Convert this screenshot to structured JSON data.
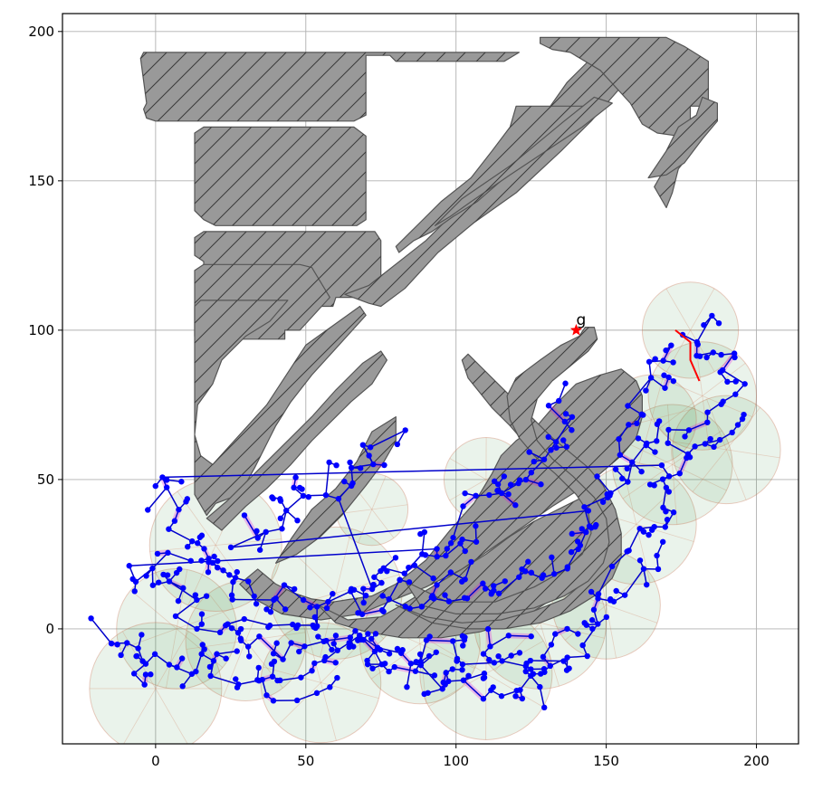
{
  "chart_data": {
    "type": "scatter",
    "title": "",
    "xlabel": "",
    "ylabel": "",
    "xlim": [
      -31,
      214
    ],
    "ylim": [
      -38.5,
      206
    ],
    "xticks": [
      0,
      50,
      100,
      150,
      200
    ],
    "yticks": [
      0,
      50,
      100,
      150,
      200
    ],
    "grid": true,
    "goal": {
      "x": 140,
      "y": 100,
      "label": "g",
      "color": "#ff0000"
    },
    "colors": {
      "obstacle_fill": "#999999",
      "obstacle_edge": "#555555",
      "tree_nodes": "#0000ff",
      "tree_edges": "#0000cc",
      "sampling_regions": "#2e8b3a",
      "local_paths": "#e000e0",
      "final_path": "#ff0000"
    },
    "obstacles": [
      [
        [
          -5,
          191
        ],
        [
          -4,
          193
        ],
        [
          121,
          193
        ],
        [
          116,
          190
        ],
        [
          80,
          190
        ],
        [
          78,
          192
        ],
        [
          70,
          192
        ],
        [
          70,
          172
        ],
        [
          66,
          170
        ],
        [
          0,
          170
        ],
        [
          -3,
          171
        ],
        [
          -4,
          174
        ],
        [
          -3,
          176
        ]
      ],
      [
        [
          13,
          166
        ],
        [
          16,
          168
        ],
        [
          66,
          168
        ],
        [
          70,
          165
        ],
        [
          70,
          137
        ],
        [
          67,
          135
        ],
        [
          20,
          135
        ],
        [
          16,
          137
        ],
        [
          13,
          140
        ]
      ],
      [
        [
          13,
          131
        ],
        [
          16,
          133
        ],
        [
          73,
          133
        ],
        [
          75,
          130
        ],
        [
          75,
          115
        ],
        [
          70,
          111
        ],
        [
          60,
          111
        ],
        [
          59,
          108
        ],
        [
          52,
          108
        ],
        [
          44,
          113
        ],
        [
          44,
          110
        ],
        [
          20,
          110
        ],
        [
          16,
          113
        ],
        [
          16,
          123
        ],
        [
          13,
          125
        ],
        [
          13,
          126
        ]
      ],
      [
        [
          13,
          120
        ],
        [
          16,
          122
        ],
        [
          48,
          122
        ],
        [
          52,
          121
        ],
        [
          58,
          111
        ],
        [
          48,
          100
        ],
        [
          43,
          100
        ],
        [
          43,
          97
        ],
        [
          16,
          97
        ],
        [
          13,
          98
        ]
      ],
      [
        [
          13,
          108
        ],
        [
          15,
          110
        ],
        [
          19,
          110
        ],
        [
          44,
          110
        ],
        [
          38,
          103
        ],
        [
          30,
          98
        ],
        [
          22,
          90
        ],
        [
          19,
          82
        ],
        [
          14,
          75
        ],
        [
          13,
          65
        ],
        [
          15,
          58
        ],
        [
          19,
          55
        ],
        [
          37,
          75
        ],
        [
          50,
          95
        ],
        [
          68,
          108
        ],
        [
          70,
          105
        ],
        [
          52,
          85
        ],
        [
          45,
          76
        ],
        [
          40,
          68
        ],
        [
          33,
          54
        ],
        [
          28,
          45
        ],
        [
          20,
          42
        ],
        [
          17,
          38
        ],
        [
          13,
          45
        ],
        [
          13,
          55
        ]
      ],
      [
        [
          63,
          112
        ],
        [
          71,
          115
        ],
        [
          90,
          130
        ],
        [
          105,
          145
        ],
        [
          120,
          160
        ],
        [
          130,
          173
        ],
        [
          137,
          183
        ],
        [
          145,
          191
        ],
        [
          150,
          197
        ],
        [
          160,
          197
        ],
        [
          165,
          193
        ],
        [
          145,
          170
        ],
        [
          135,
          160
        ],
        [
          120,
          146
        ],
        [
          106,
          136
        ],
        [
          94,
          126
        ],
        [
          83,
          114
        ],
        [
          75,
          108
        ],
        [
          71,
          109
        ]
      ],
      [
        [
          128,
          198
        ],
        [
          170,
          198
        ],
        [
          176,
          195
        ],
        [
          184,
          190
        ],
        [
          184,
          175
        ],
        [
          178,
          175
        ],
        [
          178,
          168
        ],
        [
          180,
          164
        ],
        [
          178,
          159
        ],
        [
          174,
          154
        ],
        [
          172,
          146
        ],
        [
          170,
          141
        ],
        [
          166,
          148
        ],
        [
          170,
          155
        ],
        [
          173,
          160
        ],
        [
          174,
          165
        ],
        [
          167,
          166
        ],
        [
          162,
          169
        ],
        [
          158,
          176
        ],
        [
          148,
          187
        ],
        [
          138,
          193
        ],
        [
          132,
          194
        ],
        [
          128,
          196
        ]
      ],
      [
        [
          120,
          175
        ],
        [
          145,
          175
        ],
        [
          130,
          163
        ],
        [
          115,
          150
        ],
        [
          107,
          143
        ],
        [
          99,
          138
        ],
        [
          92,
          133
        ],
        [
          86,
          130
        ],
        [
          81,
          126
        ],
        [
          80,
          128
        ],
        [
          88,
          136
        ],
        [
          95,
          143
        ],
        [
          105,
          151
        ],
        [
          112,
          160
        ],
        [
          118,
          168
        ]
      ],
      [
        [
          93,
          135
        ],
        [
          102,
          144
        ],
        [
          118,
          155
        ],
        [
          136,
          170
        ],
        [
          146,
          178
        ],
        [
          152,
          176
        ],
        [
          142,
          168
        ],
        [
          130,
          160
        ],
        [
          118,
          152
        ],
        [
          105,
          143
        ],
        [
          98,
          138
        ]
      ],
      [
        [
          164,
          151
        ],
        [
          170,
          160
        ],
        [
          174,
          168
        ],
        [
          180,
          172
        ],
        [
          182,
          178
        ],
        [
          187,
          176
        ],
        [
          187,
          170
        ],
        [
          182,
          164
        ],
        [
          176,
          156
        ],
        [
          170,
          152
        ]
      ],
      [
        [
          17,
          37
        ],
        [
          22,
          33
        ],
        [
          30,
          41
        ],
        [
          37,
          47
        ],
        [
          45,
          55
        ],
        [
          52,
          63
        ],
        [
          60,
          71
        ],
        [
          65,
          76
        ],
        [
          72,
          82
        ],
        [
          77,
          90
        ],
        [
          75,
          93
        ],
        [
          69,
          89
        ],
        [
          60,
          80
        ],
        [
          52,
          71
        ],
        [
          45,
          64
        ],
        [
          37,
          56
        ],
        [
          30,
          49
        ],
        [
          24,
          43
        ]
      ],
      [
        [
          40,
          22
        ],
        [
          45,
          30
        ],
        [
          52,
          40
        ],
        [
          60,
          47
        ],
        [
          67,
          56
        ],
        [
          72,
          66
        ],
        [
          80,
          71
        ],
        [
          80,
          63
        ],
        [
          76,
          56
        ],
        [
          70,
          48
        ],
        [
          62,
          38
        ],
        [
          55,
          31
        ],
        [
          47,
          25
        ]
      ],
      [
        [
          34,
          20
        ],
        [
          40,
          15
        ],
        [
          46,
          12
        ],
        [
          52,
          10
        ],
        [
          59,
          9
        ],
        [
          72,
          11
        ],
        [
          80,
          15
        ],
        [
          90,
          23
        ],
        [
          98,
          33
        ],
        [
          106,
          42
        ],
        [
          112,
          52
        ],
        [
          115,
          58
        ],
        [
          120,
          63
        ],
        [
          127,
          68
        ],
        [
          133,
          75
        ],
        [
          140,
          82
        ],
        [
          148,
          85
        ],
        [
          155,
          87
        ],
        [
          160,
          83
        ],
        [
          162,
          78
        ],
        [
          162,
          71
        ],
        [
          160,
          64
        ],
        [
          155,
          58
        ],
        [
          148,
          52
        ],
        [
          140,
          46
        ],
        [
          132,
          41
        ],
        [
          122,
          34
        ],
        [
          112,
          27
        ],
        [
          102,
          20
        ],
        [
          90,
          14
        ],
        [
          80,
          10
        ],
        [
          68,
          5
        ],
        [
          55,
          3
        ],
        [
          42,
          5
        ],
        [
          33,
          10
        ],
        [
          28,
          15
        ]
      ],
      [
        [
          54,
          8
        ],
        [
          64,
          3
        ],
        [
          75,
          4
        ],
        [
          82,
          8
        ],
        [
          92,
          14
        ],
        [
          102,
          20
        ],
        [
          110,
          25
        ],
        [
          118,
          31
        ],
        [
          126,
          36
        ],
        [
          134,
          40
        ],
        [
          142,
          44
        ],
        [
          148,
          46
        ],
        [
          152,
          42
        ],
        [
          154,
          36
        ],
        [
          152,
          30
        ],
        [
          148,
          24
        ],
        [
          142,
          18
        ],
        [
          135,
          12
        ],
        [
          126,
          6
        ],
        [
          118,
          2
        ],
        [
          108,
          -1
        ],
        [
          95,
          -3
        ],
        [
          82,
          -3
        ],
        [
          70,
          -1
        ],
        [
          60,
          2
        ]
      ],
      [
        [
          80,
          8
        ],
        [
          90,
          4
        ],
        [
          102,
          2
        ],
        [
          115,
          3
        ],
        [
          126,
          6
        ],
        [
          136,
          10
        ],
        [
          143,
          16
        ],
        [
          148,
          22
        ],
        [
          150,
          28
        ],
        [
          149,
          35
        ],
        [
          145,
          42
        ],
        [
          140,
          46
        ],
        [
          136,
          50
        ],
        [
          130,
          55
        ],
        [
          124,
          61
        ],
        [
          118,
          68
        ],
        [
          112,
          74
        ],
        [
          108,
          79
        ],
        [
          104,
          84
        ],
        [
          102,
          90
        ],
        [
          104,
          92
        ],
        [
          108,
          88
        ],
        [
          114,
          82
        ],
        [
          120,
          76
        ],
        [
          126,
          70
        ],
        [
          132,
          64
        ],
        [
          138,
          59
        ],
        [
          144,
          54
        ],
        [
          149,
          48
        ],
        [
          153,
          40
        ],
        [
          155,
          32
        ],
        [
          155,
          24
        ],
        [
          152,
          17
        ],
        [
          146,
          11
        ],
        [
          138,
          6
        ],
        [
          128,
          2
        ],
        [
          116,
          0
        ],
        [
          104,
          0
        ],
        [
          92,
          2
        ]
      ],
      [
        [
          83,
          16
        ],
        [
          97,
          9
        ],
        [
          113,
          9
        ],
        [
          126,
          14
        ],
        [
          135,
          19
        ],
        [
          142,
          25
        ],
        [
          145,
          32
        ],
        [
          144,
          39
        ],
        [
          140,
          45
        ],
        [
          133,
          52
        ],
        [
          126,
          58
        ],
        [
          121,
          64
        ],
        [
          118,
          70
        ],
        [
          117,
          78
        ],
        [
          120,
          84
        ],
        [
          128,
          90
        ],
        [
          135,
          95
        ],
        [
          141,
          98
        ],
        [
          143,
          101
        ],
        [
          146,
          101
        ],
        [
          147,
          97
        ],
        [
          144,
          93
        ],
        [
          138,
          88
        ],
        [
          132,
          83
        ],
        [
          127,
          77
        ],
        [
          125,
          70
        ],
        [
          127,
          63
        ],
        [
          132,
          57
        ],
        [
          139,
          51
        ],
        [
          146,
          44
        ],
        [
          150,
          37
        ],
        [
          151,
          29
        ],
        [
          149,
          22
        ],
        [
          144,
          16
        ],
        [
          136,
          11
        ],
        [
          126,
          7
        ],
        [
          114,
          5
        ],
        [
          100,
          5
        ],
        [
          88,
          8
        ]
      ]
    ],
    "regions": [
      {
        "x": 7,
        "y": 0,
        "r": 20
      },
      {
        "x": 0,
        "y": -20,
        "r": 22
      },
      {
        "x": 30,
        "y": -4,
        "r": 20
      },
      {
        "x": 55,
        "y": -18,
        "r": 20
      },
      {
        "x": 20,
        "y": 28,
        "r": 22
      },
      {
        "x": 60,
        "y": 12,
        "r": 22
      },
      {
        "x": 88,
        "y": -5,
        "r": 20
      },
      {
        "x": 110,
        "y": -15,
        "r": 22
      },
      {
        "x": 128,
        "y": 2,
        "r": 22
      },
      {
        "x": 150,
        "y": 8,
        "r": 18
      },
      {
        "x": 160,
        "y": 35,
        "r": 20
      },
      {
        "x": 172,
        "y": 55,
        "r": 20
      },
      {
        "x": 190,
        "y": 60,
        "r": 18
      },
      {
        "x": 182,
        "y": 78,
        "r": 18
      },
      {
        "x": 178,
        "y": 100,
        "r": 16
      },
      {
        "x": 165,
        "y": 70,
        "r": 15
      },
      {
        "x": 110,
        "y": 50,
        "r": 14
      },
      {
        "x": 72,
        "y": 40,
        "r": 12
      }
    ]
  }
}
